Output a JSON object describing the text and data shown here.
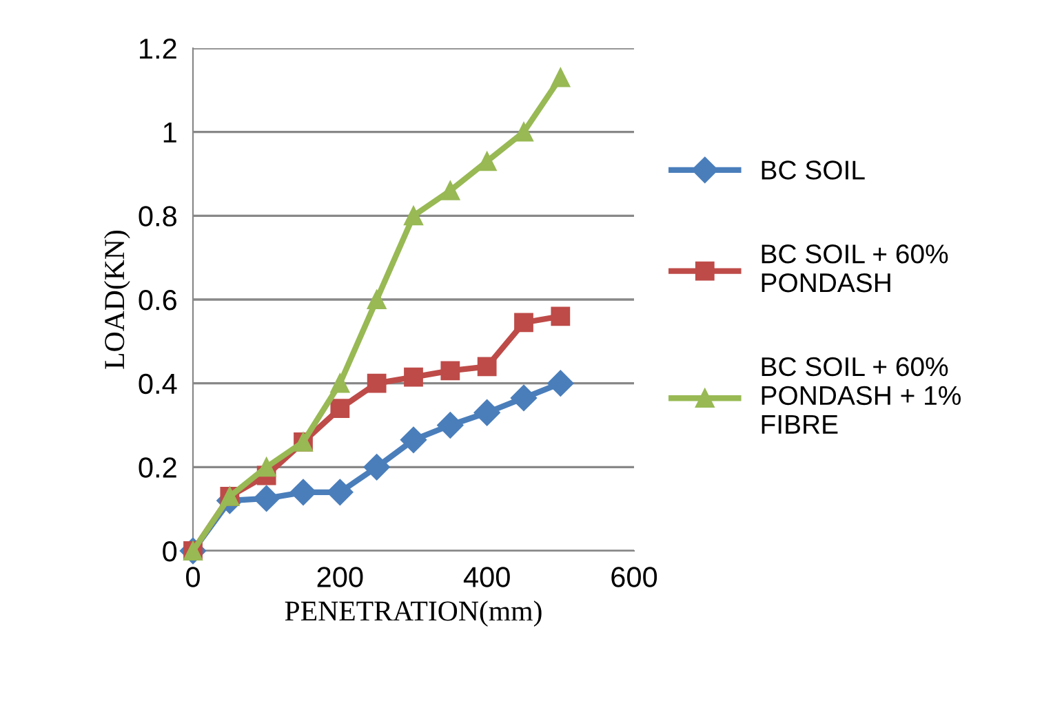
{
  "chart_data": {
    "type": "line",
    "xlabel": "PENETRATION(mm)",
    "ylabel": "LOAD(KN)",
    "x": [
      0,
      50,
      100,
      150,
      200,
      250,
      300,
      350,
      400,
      450,
      500
    ],
    "xlim": [
      0,
      600
    ],
    "xticks": [
      0,
      200,
      400,
      600
    ],
    "ylim": [
      0,
      1.2
    ],
    "yticks": [
      0,
      0.2,
      0.4,
      0.6,
      0.8,
      1,
      1.2
    ],
    "grid": "y",
    "legend": "right",
    "series": [
      {
        "name": "BC SOIL",
        "color": "#4a7ebb",
        "marker": "diamond",
        "values": [
          0,
          0.12,
          0.125,
          0.14,
          0.14,
          0.2,
          0.265,
          0.3,
          0.33,
          0.365,
          0.4
        ]
      },
      {
        "name": "BC SOIL + 60%\nPONDASH",
        "color": "#be4b48",
        "marker": "square",
        "values": [
          0,
          0.13,
          0.18,
          0.26,
          0.34,
          0.4,
          0.415,
          0.43,
          0.44,
          0.545,
          0.56
        ]
      },
      {
        "name": "BC SOIL + 60%\nPONDASH + 1%\nFIBRE",
        "color": "#98b954",
        "marker": "triangle",
        "values": [
          0,
          0.13,
          0.2,
          0.26,
          0.4,
          0.6,
          0.8,
          0.86,
          0.93,
          1.0,
          1.13
        ]
      }
    ]
  }
}
